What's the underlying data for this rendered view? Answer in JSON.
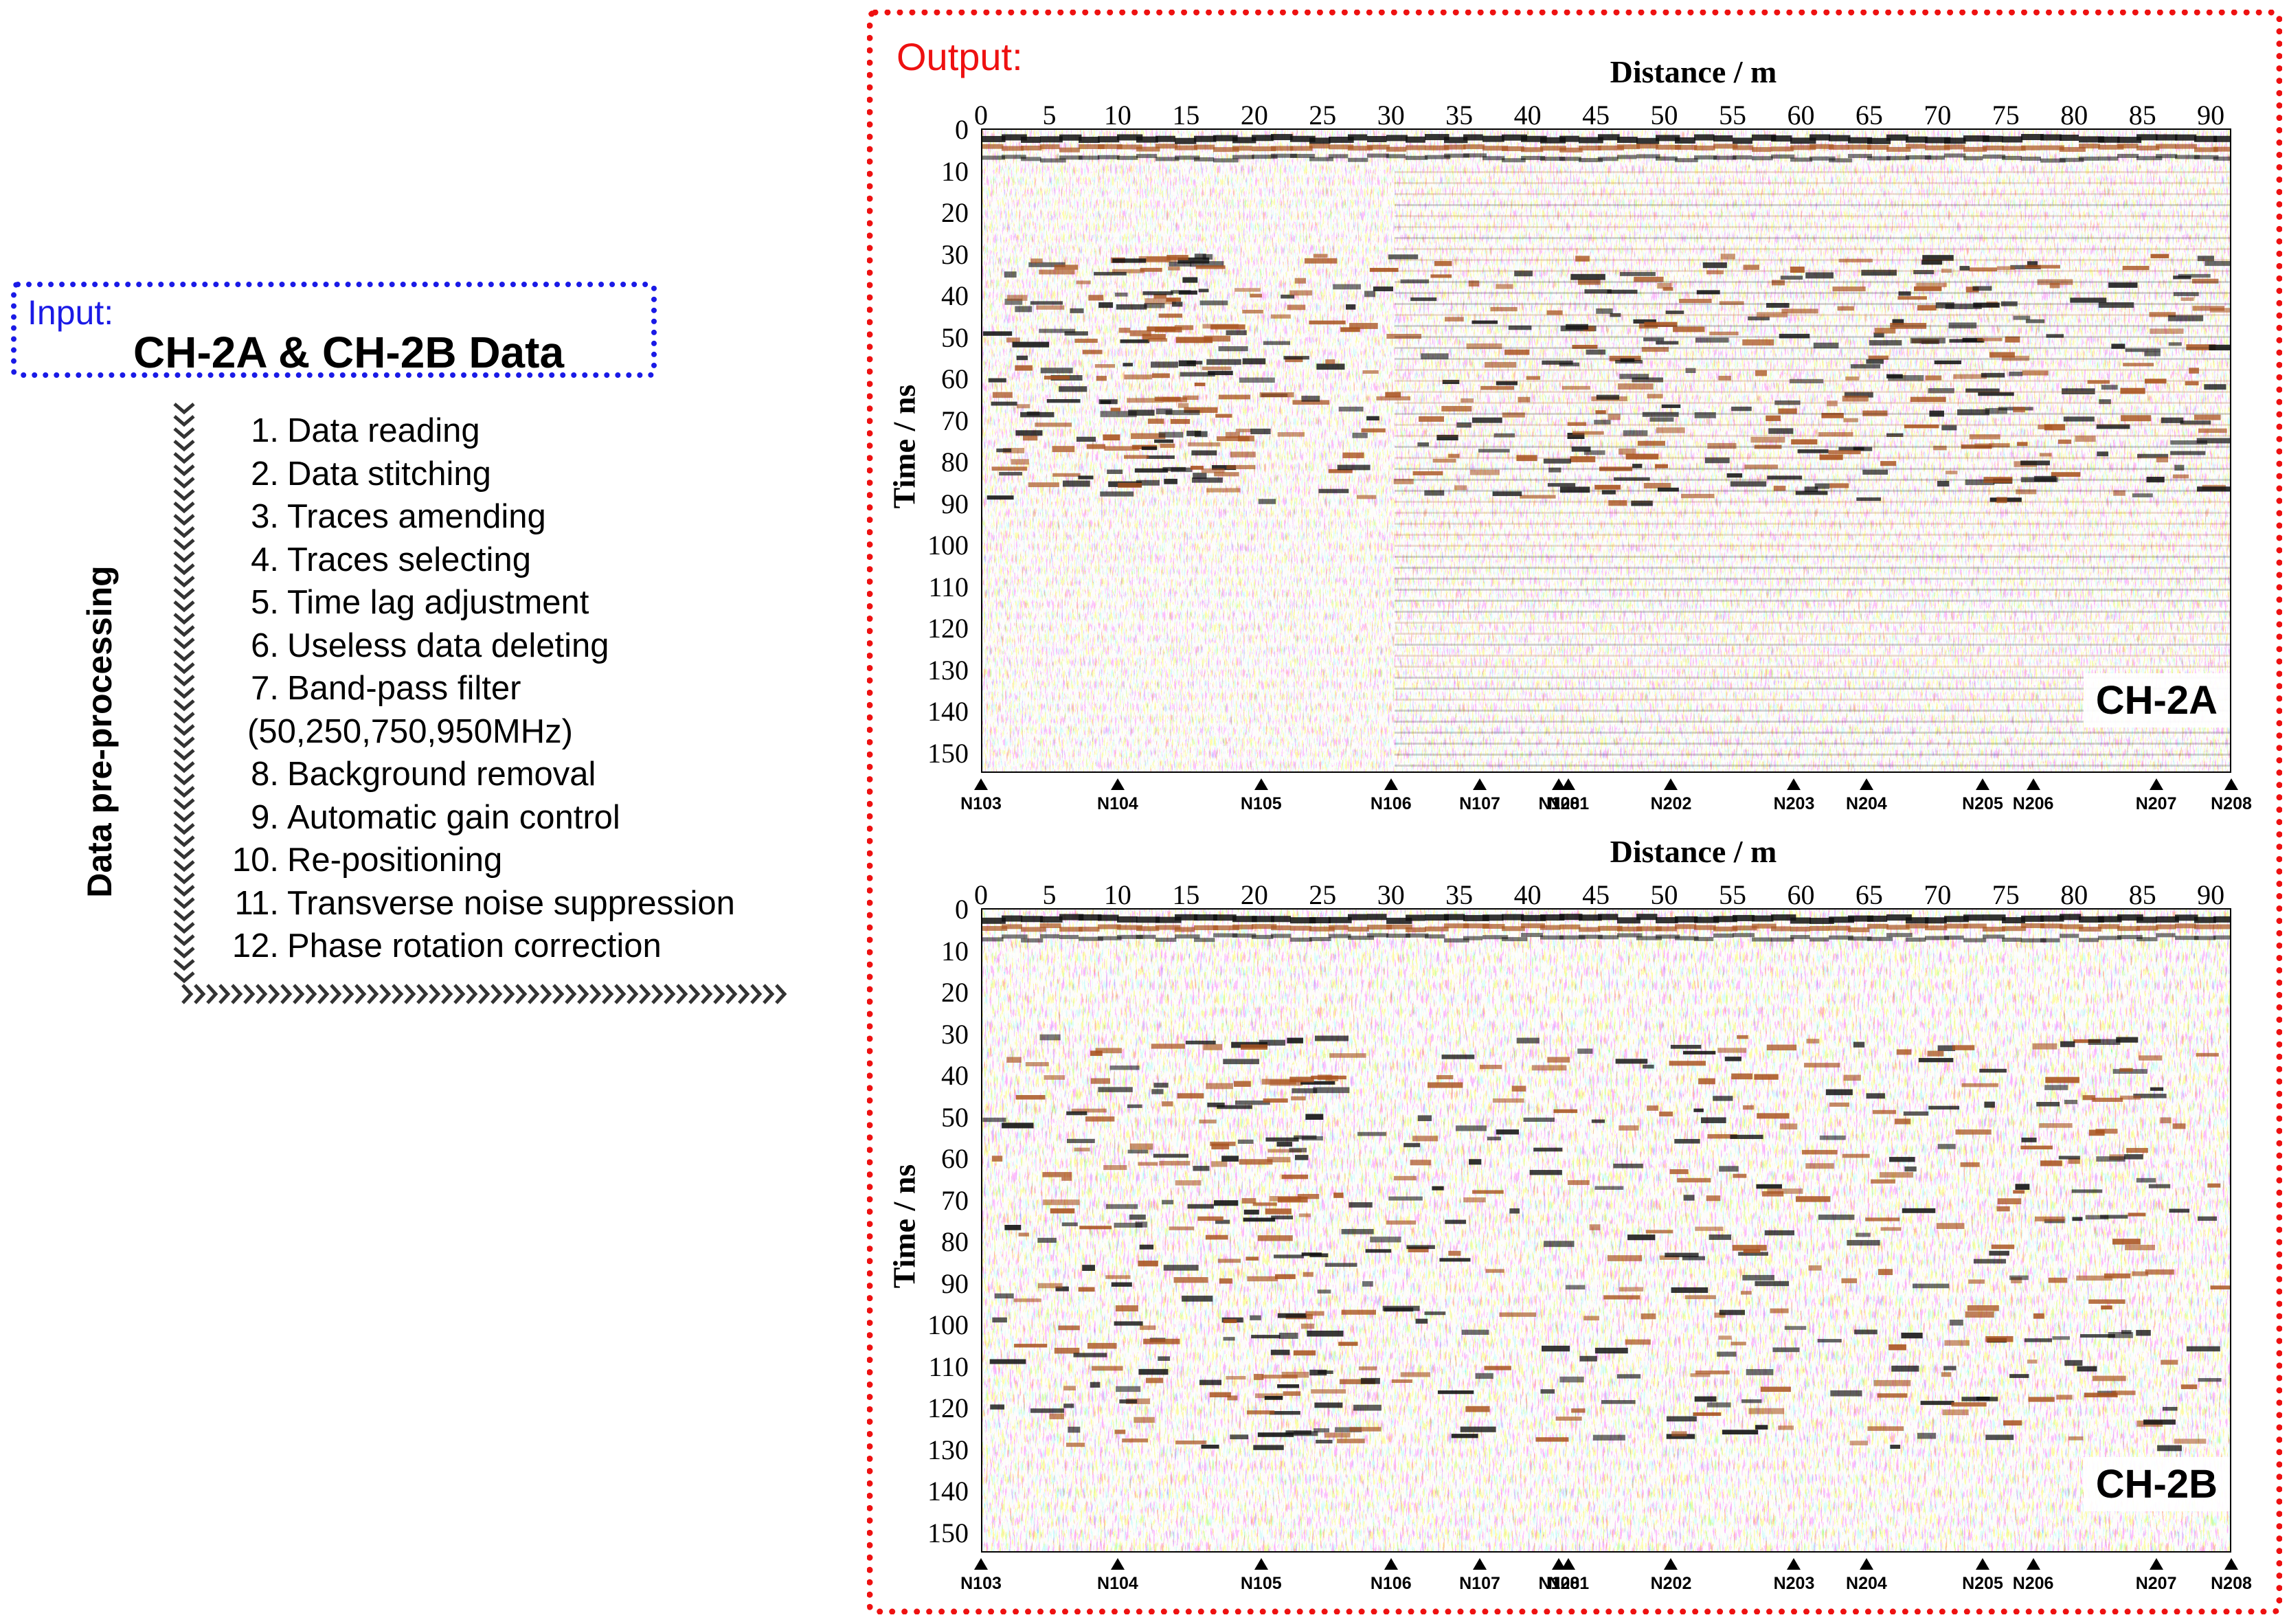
{
  "input": {
    "label": "Input:",
    "title": "CH-2A & CH-2B Data"
  },
  "preprocessing_label": "Data pre-processing",
  "steps": [
    {
      "num": "1.",
      "text": "Data reading"
    },
    {
      "num": "2.",
      "text": "Data stitching"
    },
    {
      "num": "3.",
      "text": "Traces amending"
    },
    {
      "num": "4.",
      "text": "Traces selecting"
    },
    {
      "num": "5.",
      "text": "Time lag adjustment"
    },
    {
      "num": "6.",
      "text": "Useless data deleting"
    },
    {
      "num": "7.",
      "text": "Band-pass filter"
    },
    {
      "num": "",
      "text": "(50,250,750,950MHz)"
    },
    {
      "num": "8.",
      "text": "Background removal"
    },
    {
      "num": "9.",
      "text": "Automatic gain control"
    },
    {
      "num": "10.",
      "text": "Re-positioning"
    },
    {
      "num": "11.",
      "text": "Transverse noise suppression"
    },
    {
      "num": "12.",
      "text": "Phase rotation correction"
    }
  ],
  "output": {
    "label": "Output:"
  },
  "colors": {
    "input": "#1a1ae6",
    "output": "#ee1111",
    "positive": "#a8521e",
    "negative": "#111111"
  },
  "panels": [
    {
      "id": "a",
      "tag": "CH-2A",
      "xlabel": "Distance / m",
      "ylabel": "Time / ns"
    },
    {
      "id": "b",
      "tag": "CH-2B",
      "xlabel": "Distance / m",
      "ylabel": "Time / ns"
    }
  ],
  "axes": {
    "x_ticks": [
      "0",
      "5",
      "10",
      "15",
      "20",
      "25",
      "30",
      "35",
      "40",
      "45",
      "50",
      "55",
      "60",
      "65",
      "70",
      "75",
      "80",
      "85",
      "90"
    ],
    "y_ticks": [
      "0",
      "10",
      "20",
      "30",
      "40",
      "50",
      "60",
      "70",
      "80",
      "90",
      "100",
      "110",
      "120",
      "130",
      "140",
      "150"
    ],
    "x_range": [
      0,
      91.5
    ],
    "y_range": [
      0,
      155
    ]
  },
  "markers": [
    {
      "label": "N103",
      "distance": 0.0
    },
    {
      "label": "N104",
      "distance": 10.0
    },
    {
      "label": "N105",
      "distance": 20.5
    },
    {
      "label": "N106",
      "distance": 30.0
    },
    {
      "label": "N107",
      "distance": 36.5
    },
    {
      "label": "N108",
      "distance": 42.3
    },
    {
      "label": "N201",
      "distance": 43.0
    },
    {
      "label": "N202",
      "distance": 50.5
    },
    {
      "label": "N203",
      "distance": 59.5
    },
    {
      "label": "N204",
      "distance": 64.8
    },
    {
      "label": "N205",
      "distance": 73.3
    },
    {
      "label": "N206",
      "distance": 77.0
    },
    {
      "label": "N207",
      "distance": 86.0
    },
    {
      "label": "N208",
      "distance": 91.5
    }
  ],
  "chart_data": [
    {
      "type": "heatmap",
      "title": "",
      "xlabel": "Distance / m",
      "ylabel": "Time / ns",
      "xlim": [
        0,
        91.5
      ],
      "ylim": [
        155,
        0
      ],
      "annotation": "CH-2A"
    },
    {
      "type": "heatmap",
      "title": "",
      "xlabel": "Distance / m",
      "ylabel": "Time / ns",
      "xlim": [
        0,
        91.5
      ],
      "ylim": [
        155,
        0
      ],
      "annotation": "CH-2B"
    }
  ]
}
